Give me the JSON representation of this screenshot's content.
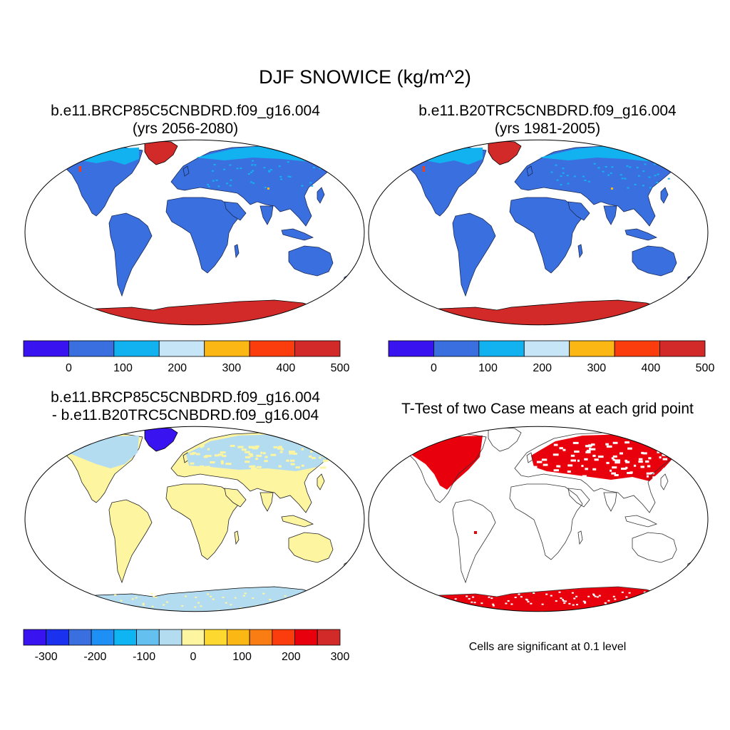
{
  "title": "DJF SNOWICE (kg/m^2)",
  "panels": [
    {
      "title_line1": "b.e11.BRCP85C5CNBDRD.f09_g16.004",
      "title_line2": "(yrs 2056-2080)"
    },
    {
      "title_line1": "b.e11.B20TRC5CNBDRD.f09_g16.004",
      "title_line2": "(yrs 1981-2005)"
    },
    {
      "title_line1": "b.e11.BRCP85C5CNBDRD.f09_g16.004",
      "title_line2": "- b.e11.B20TRC5CNBDRD.f09_g16.004"
    },
    {
      "title_line1": "T-Test of two Case means at each grid point"
    }
  ],
  "colorbar_abs": {
    "colors": [
      "#3a14f0",
      "#3a6fe0",
      "#12b2f0",
      "#c6e6f8",
      "#fbb714",
      "#fb3c0c",
      "#d22a28"
    ],
    "tick_labels": [
      "0",
      "100",
      "200",
      "300",
      "400",
      "500"
    ]
  },
  "colorbar_diff": {
    "colors": [
      "#3a14f0",
      "#1a32f0",
      "#3a6fe0",
      "#1e90f5",
      "#0fb4f2",
      "#64c0ee",
      "#b4dcf0",
      "#fef5a0",
      "#fdd82e",
      "#fbb714",
      "#fa7d14",
      "#fb3c0c",
      "#e8000c",
      "#d22a28"
    ],
    "tick_labels": [
      "-300",
      "-200",
      "-100",
      "0",
      "100",
      "200",
      "300"
    ]
  },
  "significance_note": "Cells are significant at 0.1 level",
  "map_colors": {
    "land_low": "#3a6fe0",
    "ice_sheet": "#d22a28",
    "snow_cover": "#12b2f0",
    "diff_zero": "#fef5a0",
    "diff_negative": "#b4dcf0",
    "diff_strong_negative": "#3a14f0",
    "significant": "#e8000c",
    "coast": "#000000"
  }
}
